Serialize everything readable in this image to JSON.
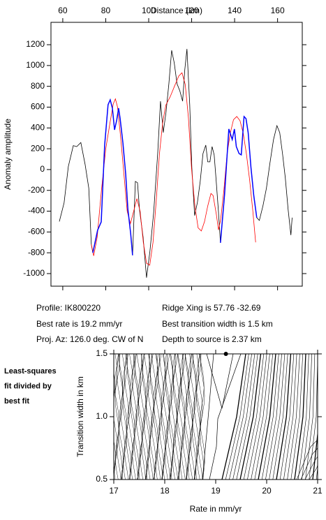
{
  "chart_data": [
    {
      "type": "line",
      "x_label": "Distance (km)",
      "y_label": "Anomaly amplitude",
      "x_axis_side": "top",
      "xlim": [
        54.5,
        171.5
      ],
      "ylim": [
        -1121,
        1415
      ],
      "xticks": [
        60,
        80,
        100,
        120,
        140,
        160
      ],
      "yticks": [
        -1000,
        -800,
        -600,
        -400,
        -200,
        0,
        200,
        400,
        600,
        800,
        1000,
        1200
      ],
      "series": [
        {
          "color": "#000000",
          "x": [
            58.4,
            60.6,
            62.6,
            64.9,
            66.5,
            68.4,
            70.4,
            72.1,
            73.3,
            74.0,
            76.2,
            77.9,
            79.5,
            81.1,
            82.1,
            83.1,
            84.1,
            85.1,
            86.0,
            86.7,
            88.0,
            89.3,
            90.3,
            91.6,
            92.5,
            93.8,
            94.8,
            95.7,
            97.4,
            99.0,
            100.6,
            102.3,
            104.2,
            105.5,
            106.8,
            108.1,
            109.4,
            110.7,
            111.9,
            113.2,
            114.5,
            115.8,
            116.8,
            117.8,
            119.1,
            120.1,
            121.4,
            122.7,
            124.0,
            125.3,
            126.6,
            127.5,
            128.5,
            129.5,
            130.5,
            131.4,
            132.4,
            133.4,
            135.3,
            137.3,
            138.9,
            139.9,
            140.8,
            142.1,
            143.1,
            144.4,
            145.3,
            146.3,
            147.6,
            148.9,
            150.3,
            151.5,
            153.2,
            154.8,
            156.4,
            158.1,
            159.7,
            161.0,
            162.3,
            163.6,
            164.9,
            166.2,
            166.8
          ],
          "values": [
            -500,
            -320,
            30,
            230,
            220,
            260,
            50,
            -180,
            -720,
            -800,
            -583,
            -503,
            234,
            623,
            670,
            590,
            382,
            476,
            590,
            489,
            254,
            -47,
            -382,
            -616,
            -824,
            -114,
            -127,
            -382,
            -650,
            -1039,
            -784,
            -415,
            154,
            657,
            355,
            556,
            824,
            1146,
            1025,
            824,
            757,
            657,
            958,
            1159,
            623,
            20,
            -442,
            -315,
            -114,
            154,
            235,
            74,
            74,
            221,
            141,
            -101,
            -382,
            -704,
            -248,
            389,
            288,
            389,
            221,
            154,
            141,
            509,
            489,
            355,
            20,
            -248,
            -462,
            -489,
            -348,
            -181,
            54,
            288,
            422,
            355,
            154,
            -80,
            -382,
            -630,
            -462
          ]
        },
        {
          "color": "#ff0000",
          "x": [
            73.3,
            74.4,
            76.0,
            78.0,
            80.0,
            82.0,
            83.5,
            84.5,
            85.5,
            87.0,
            88.5,
            90.0,
            91.5,
            93.0,
            94.5,
            96.0,
            97.5,
            99.0,
            100.5,
            102.0,
            103.5,
            105.0,
            106.5,
            108.0,
            110.0,
            112.0,
            114.0,
            115.5,
            117.0,
            118.5,
            120.0,
            121.5,
            123.0,
            124.5,
            126.0,
            127.5,
            129.0,
            130.0,
            131.5,
            132.5,
            133.5,
            135.0,
            136.5,
            138.0,
            139.5,
            141.0,
            142.5,
            144.0,
            145.5,
            147.0,
            148.5,
            149.8
          ],
          "values": [
            -720,
            -830,
            -650,
            -200,
            200,
            450,
            630,
            680,
            600,
            300,
            -50,
            -400,
            -520,
            -400,
            -280,
            -400,
            -700,
            -900,
            -920,
            -700,
            -300,
            150,
            450,
            620,
            700,
            800,
            900,
            930,
            820,
            500,
            0,
            -350,
            -560,
            -590,
            -500,
            -350,
            -230,
            -250,
            -430,
            -580,
            -480,
            -200,
            150,
            350,
            480,
            510,
            470,
            350,
            150,
            -100,
            -400,
            -700
          ]
        },
        {
          "color": "#0000ff",
          "x": [
            74.0,
            76.2,
            77.9,
            79.5,
            81.1,
            82.1,
            83.1,
            84.1,
            85.1,
            86.0,
            86.7,
            88.0,
            89.3,
            90.3,
            91.6,
            92.5
          ],
          "values": [
            -800,
            -583,
            -503,
            234,
            623,
            670,
            590,
            382,
            476,
            590,
            489,
            254,
            -47,
            -382,
            -616,
            -824
          ]
        },
        {
          "color": "#0000ff",
          "x": [
            133.4,
            135.3,
            137.3,
            138.9,
            139.9,
            140.8,
            142.1,
            143.1,
            144.4,
            145.3,
            146.3,
            147.6,
            148.9,
            150.3
          ],
          "values": [
            -704,
            -248,
            389,
            288,
            389,
            221,
            154,
            141,
            509,
            489,
            355,
            20,
            -248,
            -462
          ]
        }
      ],
      "annotations": [
        "Profile: IK800220",
        "Best rate is 19.2 mm/yr",
        "Proj. Az: 126.0 deg. CW of N",
        "Ridge Xing is 57.76 -32.69",
        "Best transition width is 1.5 km",
        "Depth to source is   2.37 km"
      ]
    },
    {
      "type": "contour",
      "x_label": "Rate in mm/yr",
      "y_label": "Transition width in km",
      "xlim": [
        17,
        21
      ],
      "ylim": [
        0.5,
        1.5
      ],
      "xticks": [
        17,
        18,
        19,
        20,
        21
      ],
      "yticks": [
        0.5,
        {
          "value": 1,
          "label": "1.0"
        },
        1.5
      ],
      "best_fit": {
        "x": 19.2,
        "y": 1.5
      },
      "note": [
        "Least-squares",
        "fit divided by",
        "best fit"
      ]
    }
  ]
}
